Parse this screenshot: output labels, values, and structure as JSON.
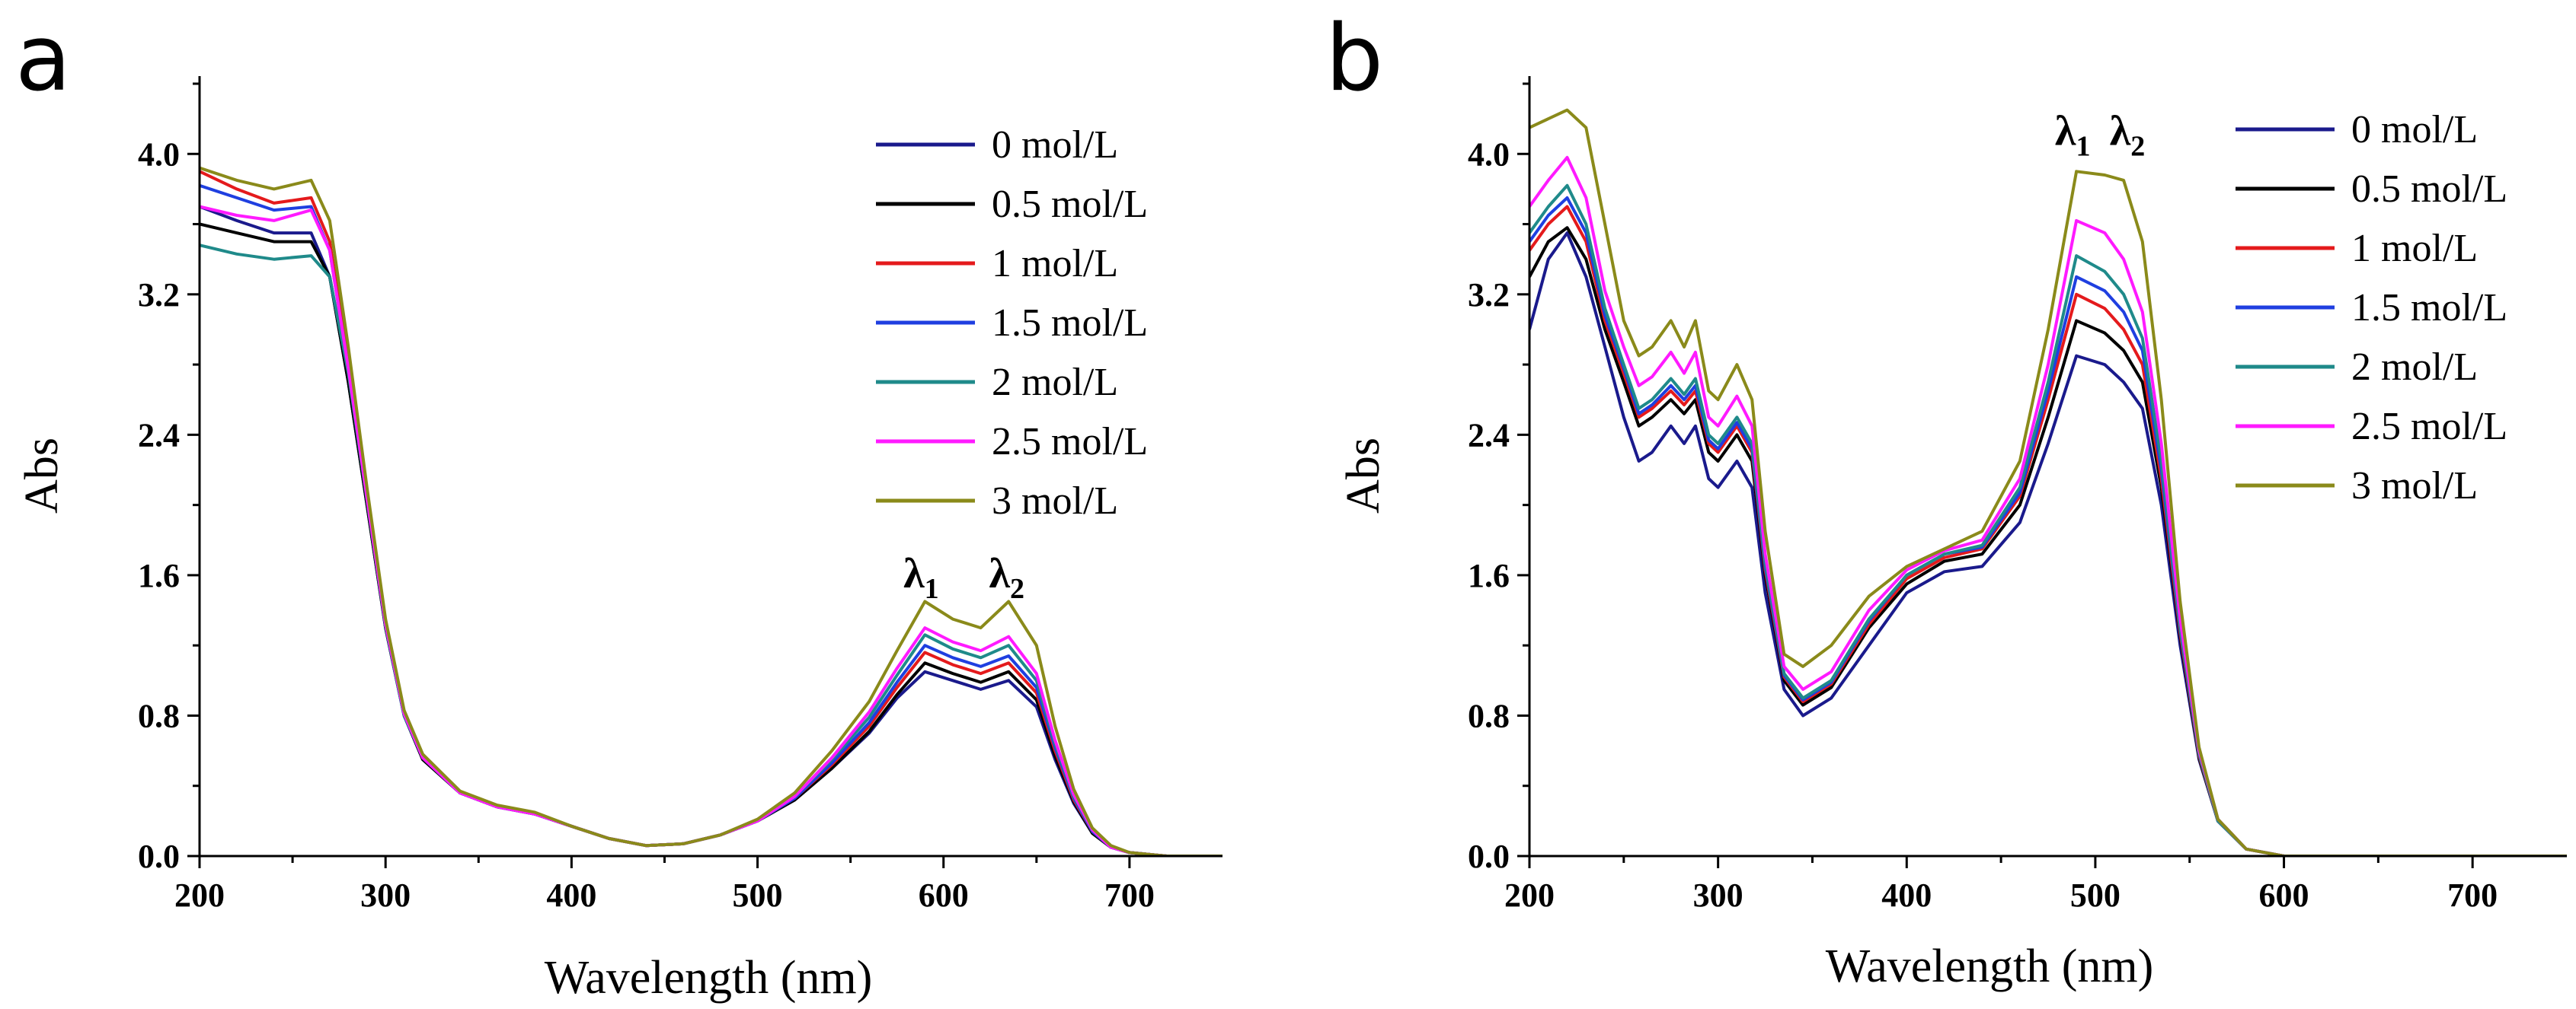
{
  "chart_data": [
    {
      "type": "line",
      "panel_label": "a",
      "xlabel": "Wavelength (nm)",
      "ylabel": "Abs",
      "xlim": [
        200,
        750
      ],
      "ylim": [
        0,
        4.4
      ],
      "xticks": [
        200,
        300,
        400,
        500,
        600,
        700
      ],
      "yticks": [
        0.0,
        0.8,
        1.6,
        2.4,
        3.2,
        4.0
      ],
      "xtick_labels": [
        "200",
        "300",
        "400",
        "500",
        "600",
        "700"
      ],
      "ytick_labels": [
        "0.0",
        "0.8",
        "1.6",
        "2.4",
        "3.2",
        "4.0"
      ],
      "legend_position": "top-right",
      "annotations": [
        {
          "text": "λ",
          "sub": "1",
          "x": 588,
          "y": 1.53
        },
        {
          "text": "λ",
          "sub": "2",
          "x": 634,
          "y": 1.53
        }
      ],
      "x": [
        200,
        220,
        240,
        260,
        270,
        280,
        290,
        300,
        310,
        320,
        340,
        360,
        380,
        400,
        420,
        440,
        460,
        480,
        500,
        520,
        540,
        560,
        575,
        590,
        605,
        620,
        635,
        650,
        660,
        670,
        680,
        690,
        700,
        720,
        750
      ],
      "series": [
        {
          "name": "0 mol/L",
          "color": "#1a1a8c",
          "values": [
            3.7,
            3.62,
            3.55,
            3.55,
            3.3,
            2.7,
            2.0,
            1.3,
            0.8,
            0.55,
            0.36,
            0.28,
            0.24,
            0.17,
            0.1,
            0.06,
            0.07,
            0.12,
            0.2,
            0.32,
            0.5,
            0.7,
            0.9,
            1.05,
            1.0,
            0.95,
            1.0,
            0.85,
            0.55,
            0.3,
            0.13,
            0.05,
            0.02,
            0.0,
            0.0
          ]
        },
        {
          "name": "0.5 mol/L",
          "color": "#000000",
          "values": [
            3.6,
            3.55,
            3.5,
            3.5,
            3.3,
            2.7,
            2.0,
            1.3,
            0.8,
            0.55,
            0.36,
            0.28,
            0.24,
            0.17,
            0.1,
            0.06,
            0.07,
            0.12,
            0.2,
            0.32,
            0.5,
            0.71,
            0.92,
            1.1,
            1.04,
            0.99,
            1.05,
            0.89,
            0.57,
            0.31,
            0.13,
            0.05,
            0.02,
            0.0,
            0.0
          ]
        },
        {
          "name": "1 mol/L",
          "color": "#e41a1c",
          "values": [
            3.9,
            3.8,
            3.72,
            3.75,
            3.5,
            2.8,
            2.05,
            1.32,
            0.81,
            0.56,
            0.36,
            0.28,
            0.24,
            0.17,
            0.1,
            0.06,
            0.07,
            0.12,
            0.2,
            0.33,
            0.52,
            0.74,
            0.96,
            1.16,
            1.09,
            1.04,
            1.1,
            0.93,
            0.6,
            0.32,
            0.14,
            0.05,
            0.02,
            0.0,
            0.0
          ]
        },
        {
          "name": "1.5 mol/L",
          "color": "#1f3fe0",
          "values": [
            3.82,
            3.75,
            3.68,
            3.7,
            3.45,
            2.78,
            2.04,
            1.31,
            0.8,
            0.56,
            0.36,
            0.28,
            0.24,
            0.17,
            0.1,
            0.06,
            0.07,
            0.12,
            0.2,
            0.33,
            0.53,
            0.76,
            0.99,
            1.2,
            1.13,
            1.08,
            1.14,
            0.96,
            0.62,
            0.33,
            0.14,
            0.05,
            0.02,
            0.0,
            0.0
          ]
        },
        {
          "name": "2 mol/L",
          "color": "#1f8a8a",
          "values": [
            3.48,
            3.43,
            3.4,
            3.42,
            3.3,
            2.75,
            2.03,
            1.31,
            0.8,
            0.56,
            0.36,
            0.28,
            0.24,
            0.17,
            0.1,
            0.06,
            0.07,
            0.12,
            0.2,
            0.34,
            0.55,
            0.79,
            1.03,
            1.26,
            1.18,
            1.13,
            1.2,
            1.0,
            0.64,
            0.34,
            0.15,
            0.05,
            0.02,
            0.0,
            0.0
          ]
        },
        {
          "name": "2.5 mol/L",
          "color": "#ff1aff",
          "values": [
            3.7,
            3.65,
            3.62,
            3.68,
            3.45,
            2.78,
            2.04,
            1.32,
            0.81,
            0.56,
            0.36,
            0.28,
            0.24,
            0.17,
            0.1,
            0.06,
            0.07,
            0.12,
            0.2,
            0.34,
            0.56,
            0.82,
            1.07,
            1.3,
            1.22,
            1.17,
            1.25,
            1.04,
            0.66,
            0.35,
            0.15,
            0.05,
            0.02,
            0.0,
            0.0
          ]
        },
        {
          "name": "3 mol/L",
          "color": "#8a8a1a",
          "values": [
            3.92,
            3.85,
            3.8,
            3.85,
            3.62,
            2.9,
            2.1,
            1.35,
            0.83,
            0.58,
            0.37,
            0.29,
            0.25,
            0.17,
            0.1,
            0.06,
            0.07,
            0.12,
            0.21,
            0.36,
            0.6,
            0.88,
            1.17,
            1.45,
            1.35,
            1.3,
            1.45,
            1.2,
            0.74,
            0.38,
            0.16,
            0.06,
            0.02,
            0.0,
            0.0
          ]
        }
      ]
    },
    {
      "type": "line",
      "panel_label": "b",
      "xlabel": "Wavelength (nm)",
      "ylabel": "Abs",
      "xlim": [
        200,
        750
      ],
      "ylim": [
        0,
        4.4
      ],
      "xticks": [
        200,
        300,
        400,
        500,
        600,
        700
      ],
      "yticks": [
        0.0,
        0.8,
        1.6,
        2.4,
        3.2,
        4.0
      ],
      "xtick_labels": [
        "200",
        "300",
        "400",
        "500",
        "600",
        "700"
      ],
      "ytick_labels": [
        "0.0",
        "0.8",
        "1.6",
        "2.4",
        "3.2",
        "4.0"
      ],
      "legend_position": "top-right",
      "annotations": [
        {
          "text": "λ",
          "sub": "1",
          "x": 488,
          "y": 4.05
        },
        {
          "text": "λ",
          "sub": "2",
          "x": 517,
          "y": 4.05
        }
      ],
      "x": [
        200,
        210,
        220,
        230,
        240,
        250,
        258,
        265,
        275,
        282,
        288,
        295,
        300,
        310,
        318,
        325,
        335,
        345,
        360,
        380,
        400,
        420,
        440,
        460,
        475,
        490,
        505,
        515,
        525,
        535,
        545,
        555,
        565,
        580,
        600,
        650,
        750
      ],
      "series": [
        {
          "name": "0 mol/L",
          "color": "#1a1a8c",
          "values": [
            3.0,
            3.4,
            3.55,
            3.3,
            2.9,
            2.5,
            2.25,
            2.3,
            2.45,
            2.35,
            2.45,
            2.15,
            2.1,
            2.25,
            2.1,
            1.5,
            0.95,
            0.8,
            0.9,
            1.2,
            1.5,
            1.62,
            1.65,
            1.9,
            2.35,
            2.85,
            2.8,
            2.7,
            2.55,
            2.0,
            1.2,
            0.55,
            0.2,
            0.04,
            0.0,
            0.0,
            0.0
          ]
        },
        {
          "name": "0.5 mol/L",
          "color": "#000000",
          "values": [
            3.3,
            3.5,
            3.58,
            3.4,
            3.0,
            2.7,
            2.45,
            2.5,
            2.6,
            2.52,
            2.6,
            2.3,
            2.25,
            2.4,
            2.25,
            1.6,
            1.0,
            0.86,
            0.96,
            1.3,
            1.55,
            1.68,
            1.72,
            2.0,
            2.5,
            3.05,
            2.98,
            2.88,
            2.7,
            2.1,
            1.25,
            0.56,
            0.2,
            0.04,
            0.0,
            0.0,
            0.0
          ]
        },
        {
          "name": "1 mol/L",
          "color": "#e41a1c",
          "values": [
            3.45,
            3.6,
            3.7,
            3.5,
            3.05,
            2.75,
            2.5,
            2.55,
            2.65,
            2.57,
            2.65,
            2.35,
            2.3,
            2.45,
            2.3,
            1.63,
            1.02,
            0.88,
            0.98,
            1.32,
            1.58,
            1.7,
            1.75,
            2.05,
            2.6,
            3.2,
            3.12,
            3.0,
            2.8,
            2.15,
            1.27,
            0.57,
            0.2,
            0.04,
            0.0,
            0.0,
            0.0
          ]
        },
        {
          "name": "1.5 mol/L",
          "color": "#1f3fe0",
          "values": [
            3.5,
            3.65,
            3.75,
            3.55,
            3.08,
            2.78,
            2.52,
            2.57,
            2.68,
            2.6,
            2.68,
            2.37,
            2.32,
            2.47,
            2.32,
            1.65,
            1.03,
            0.89,
            0.99,
            1.34,
            1.6,
            1.72,
            1.76,
            2.07,
            2.65,
            3.3,
            3.22,
            3.1,
            2.88,
            2.2,
            1.29,
            0.58,
            0.2,
            0.04,
            0.0,
            0.0,
            0.0
          ]
        },
        {
          "name": "2 mol/L",
          "color": "#1f8a8a",
          "values": [
            3.55,
            3.7,
            3.82,
            3.6,
            3.12,
            2.8,
            2.55,
            2.6,
            2.72,
            2.63,
            2.72,
            2.4,
            2.35,
            2.5,
            2.35,
            1.67,
            1.04,
            0.9,
            1.0,
            1.35,
            1.6,
            1.72,
            1.77,
            2.1,
            2.7,
            3.42,
            3.33,
            3.2,
            2.95,
            2.25,
            1.3,
            0.58,
            0.2,
            0.04,
            0.0,
            0.0,
            0.0
          ]
        },
        {
          "name": "2.5 mol/L",
          "color": "#ff1aff",
          "values": [
            3.7,
            3.85,
            3.98,
            3.75,
            3.22,
            2.9,
            2.68,
            2.73,
            2.87,
            2.75,
            2.87,
            2.5,
            2.45,
            2.62,
            2.45,
            1.72,
            1.08,
            0.95,
            1.05,
            1.4,
            1.63,
            1.74,
            1.8,
            2.15,
            2.8,
            3.62,
            3.55,
            3.4,
            3.1,
            2.35,
            1.35,
            0.6,
            0.21,
            0.04,
            0.0,
            0.0,
            0.0
          ]
        },
        {
          "name": "3 mol/L",
          "color": "#8a8a1a",
          "values": [
            4.15,
            4.2,
            4.25,
            4.15,
            3.6,
            3.05,
            2.85,
            2.9,
            3.05,
            2.9,
            3.05,
            2.65,
            2.6,
            2.8,
            2.6,
            1.85,
            1.15,
            1.08,
            1.2,
            1.48,
            1.65,
            1.75,
            1.85,
            2.25,
            3.0,
            3.9,
            3.88,
            3.85,
            3.5,
            2.6,
            1.45,
            0.62,
            0.21,
            0.04,
            0.0,
            0.0,
            0.0
          ]
        }
      ]
    }
  ]
}
